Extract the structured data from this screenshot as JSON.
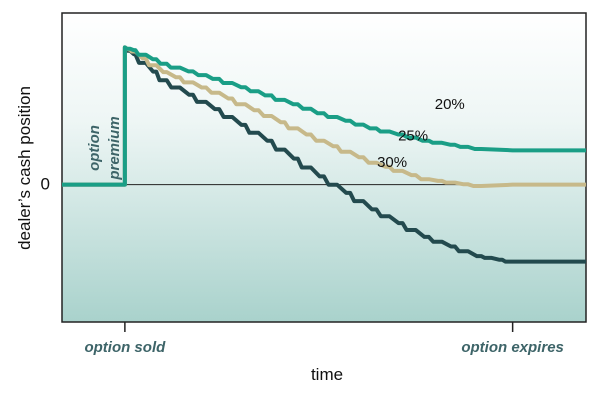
{
  "chart_data": {
    "type": "line",
    "title": "",
    "xlabel": "time",
    "ylabel": "dealer’s cash position",
    "xlim": [
      0,
      100
    ],
    "ylim": [
      -1.0,
      1.25
    ],
    "zero_label": "0",
    "x_tick_labels": [
      {
        "x": 12,
        "label": "option sold"
      },
      {
        "x": 86,
        "label": "option expires"
      }
    ],
    "annotation": {
      "line1": "option",
      "line2": "premium"
    },
    "grid": false,
    "series": [
      {
        "name": "20%",
        "color": "#1a9e86",
        "x": [
          0,
          12,
          12,
          14,
          20,
          30,
          40,
          50,
          60,
          70,
          80,
          86,
          100
        ],
        "values": [
          0,
          0,
          1.0,
          0.98,
          0.88,
          0.77,
          0.65,
          0.52,
          0.41,
          0.32,
          0.26,
          0.25,
          0.25
        ]
      },
      {
        "name": "25%",
        "color": "#c7b98a",
        "x": [
          0,
          12,
          12,
          14,
          20,
          30,
          40,
          50,
          60,
          70,
          80,
          86,
          100
        ],
        "values": [
          0,
          0,
          1.0,
          0.97,
          0.82,
          0.67,
          0.5,
          0.32,
          0.16,
          0.04,
          -0.01,
          0.0,
          0.0
        ]
      },
      {
        "name": "30%",
        "color": "#234a4e",
        "x": [
          0,
          12,
          12,
          14,
          20,
          30,
          40,
          50,
          60,
          70,
          80,
          86,
          100
        ],
        "values": [
          0,
          0,
          1.0,
          0.95,
          0.76,
          0.55,
          0.32,
          0.06,
          -0.18,
          -0.38,
          -0.52,
          -0.56,
          -0.56
        ]
      }
    ]
  }
}
